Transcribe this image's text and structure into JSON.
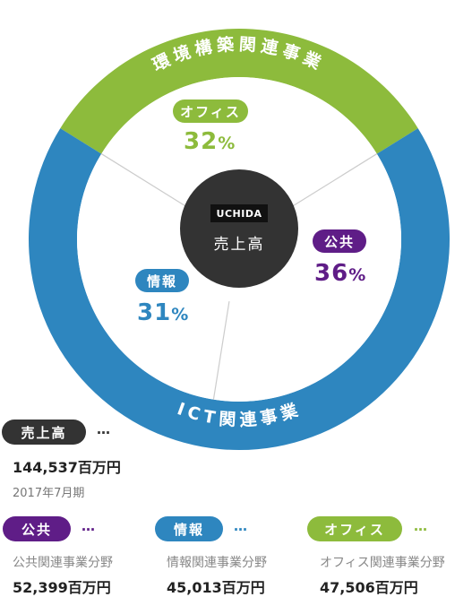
{
  "chart_data": {
    "type": "pie",
    "center": {
      "logo": "UCHIDA",
      "label": "売上高"
    },
    "outer_ring": [
      {
        "label": "環境構築関連事業",
        "color": "#8dbb3c"
      },
      {
        "label": "ICT関連事業",
        "color": "#2e86bf"
      }
    ],
    "slices": [
      {
        "key": "office",
        "label": "オフィス",
        "value": 32,
        "value_text": "32",
        "unit": "%",
        "color": "#8dbb3c"
      },
      {
        "key": "public",
        "label": "公共",
        "value": 36,
        "value_text": "36",
        "unit": "%",
        "color": "#5f1d87"
      },
      {
        "key": "info",
        "label": "情報",
        "value": 31,
        "value_text": "31",
        "unit": "%",
        "color": "#2e86bf"
      }
    ]
  },
  "legend": {
    "total": {
      "label": "売上高",
      "dots": "…",
      "amount": "144,537百万円",
      "date": "2017年7月期",
      "color": "#333333"
    },
    "items": [
      {
        "label": "公共",
        "dots": "…",
        "desc": "公共関連事業分野",
        "amount": "52,399百万円",
        "color": "#5f1d87"
      },
      {
        "label": "情報",
        "dots": "…",
        "desc": "情報関連事業分野",
        "amount": "45,013百万円",
        "color": "#2e86bf"
      },
      {
        "label": "オフィス",
        "dots": "…",
        "desc": "オフィス関連事業分野",
        "amount": "47,506百万円",
        "color": "#8dbb3c"
      }
    ]
  }
}
